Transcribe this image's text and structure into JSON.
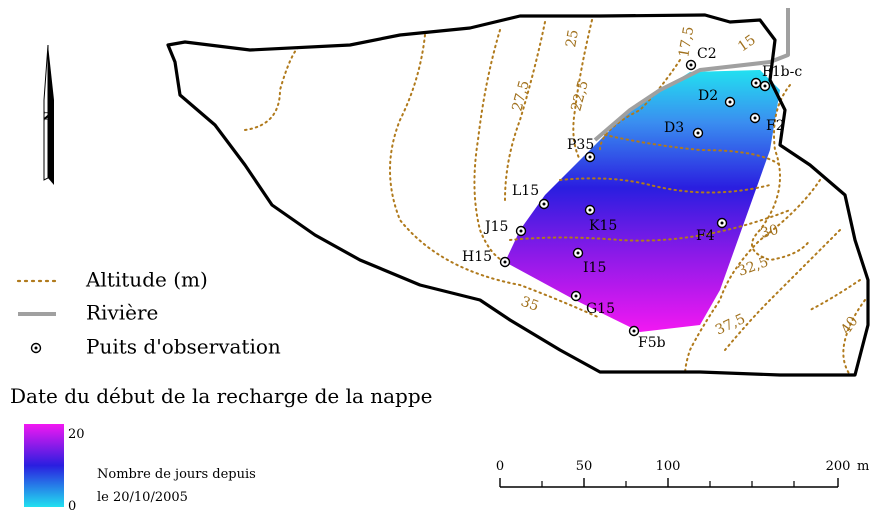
{
  "legend": {
    "altitude": "Altitude (m)",
    "river": "Rivière",
    "wells": "Puits d'observation"
  },
  "colorbar": {
    "title": "Date du début de la recharge de la nappe",
    "max_label": "20",
    "min_label": "0",
    "caption_line1": "Nombre de jours depuis",
    "caption_line2": "le 20/10/2005",
    "color_min": "#22e0f0",
    "color_mid": "#2a1ee0",
    "color_max": "#f218f2"
  },
  "scalebar": {
    "ticks": [
      "0",
      "50",
      "100",
      "200"
    ],
    "unit": "m"
  },
  "north": {
    "label": "N"
  },
  "contour_labels": [
    "15",
    "17,5",
    "22,5",
    "25",
    "27,5",
    "30",
    "32,5",
    "35",
    "37,5",
    "40"
  ],
  "wells": [
    "C2",
    "F1b-c",
    "D2",
    "F2",
    "D3",
    "P35",
    "L15",
    "K15",
    "J15",
    "F4",
    "H15",
    "I15",
    "G15",
    "F5b"
  ],
  "colors": {
    "contour": "#b07a1c",
    "river": "#a0a0a0",
    "boundary": "#000000"
  }
}
